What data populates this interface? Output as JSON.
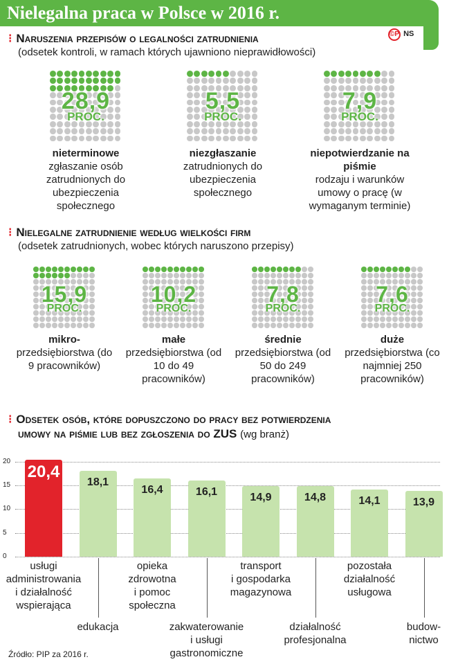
{
  "title": "Nielegalna praca w Polsce w 2016 r.",
  "logo": {
    "mark": "©P",
    "initials": "NS"
  },
  "section1": {
    "heading": "Naruszenia przepisów o legalności zatrudnienia",
    "subtitle": "(odsetek kontroli, w ramach których ujawniono nieprawidłowości)",
    "items": [
      {
        "value": "28,9",
        "percent": 28.9,
        "unit": "PROC.",
        "bold": "nieterminowe",
        "text": "zgłaszanie osób zatrudnionych do ubezpieczenia społecznego"
      },
      {
        "value": "5,5",
        "percent": 5.5,
        "unit": "PROC.",
        "bold": "niezgłaszanie",
        "text": "zatrudnionych do ubezpieczenia społecznego"
      },
      {
        "value": "7,9",
        "percent": 7.9,
        "unit": "PROC.",
        "bold": "niepotwierdzanie na piśmie",
        "text": "rodzaju i warunków umowy o pracę (w wymaganym terminie)"
      }
    ]
  },
  "section2": {
    "heading": "Nielegalne zatrudnienie według wielkości firm",
    "subtitle": "(odsetek zatrudnionych, wobec których naruszono przepisy)",
    "items": [
      {
        "value": "15,9",
        "percent": 15.9,
        "unit": "PROC.",
        "bold": "mikro-",
        "text": "przedsiębiorstwa (do 9 pracowników)"
      },
      {
        "value": "10,2",
        "percent": 10.2,
        "unit": "PROC.",
        "bold": "małe",
        "text": "przedsiębiorstwa (od 10 do 49 pracowników)"
      },
      {
        "value": "7,8",
        "percent": 7.8,
        "unit": "PROC.",
        "bold": "średnie",
        "text": "przedsiębiorstwa (od 50 do 249 pracowników)"
      },
      {
        "value": "7,6",
        "percent": 7.6,
        "unit": "PROC.",
        "bold": "duże",
        "text": "przedsiębiorstwa (co najmniej 250 pracowników)"
      }
    ]
  },
  "section3": {
    "heading_line1": "Odsetek osób, które dopuszczono do pracy bez potwierdzenia",
    "heading_line2": "umowy na piśmie lub bez zgłoszenia do ZUS",
    "heading_suffix": "(wg branż)"
  },
  "colors": {
    "green": "#5db545",
    "light_green": "#c6e3ad",
    "red": "#e2232b",
    "grey_dot": "#c8c8c8"
  },
  "chart_data": {
    "type": "bar",
    "categories": [
      "usługi administrowania i działalność wspierająca",
      "edukacja",
      "opieka zdrowotna i pomoc społeczna",
      "zakwaterowanie i usługi gastronomiczne",
      "transport i gospodarka magazynowa",
      "działalność profesjonalna",
      "pozostała działalność usługowa",
      "budownictwo"
    ],
    "category_lines": [
      [
        "usługi",
        "administrowania",
        "i działalność",
        "wspierająca"
      ],
      [
        "edukacja"
      ],
      [
        "opieka",
        "zdrowotna",
        "i pomoc",
        "społeczna"
      ],
      [
        "zakwaterowanie",
        "i usługi",
        "gastronomiczne"
      ],
      [
        "transport",
        "i gospodarka",
        "magazynowa"
      ],
      [
        "działalność",
        "profesjonalna"
      ],
      [
        "pozostała",
        "działalność",
        "usługowa"
      ],
      [
        "budow-",
        "nictwo"
      ]
    ],
    "values": [
      20.4,
      18.1,
      16.4,
      16.1,
      14.9,
      14.8,
      14.1,
      13.9
    ],
    "value_labels": [
      "20,4",
      "18,1",
      "16,4",
      "16,1",
      "14,9",
      "14,8",
      "14,1",
      "13,9"
    ],
    "highlight_index": 0,
    "yticks": [
      0,
      5,
      10,
      15,
      20
    ],
    "ylim": [
      0,
      20.4
    ],
    "grid": true
  },
  "source": "Źródło: PIP za 2016 r."
}
